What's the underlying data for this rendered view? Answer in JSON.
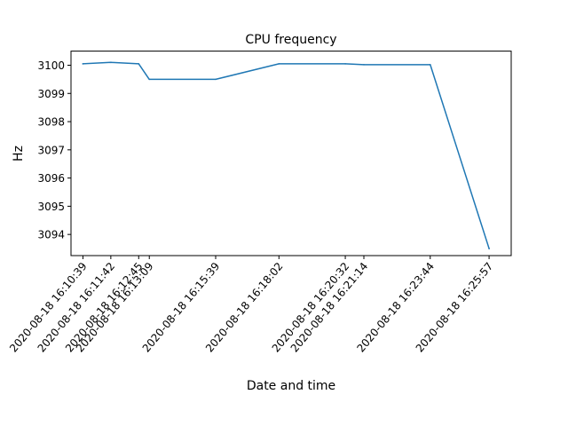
{
  "chart_data": {
    "type": "line",
    "title": "CPU frequency",
    "xlabel": "Date and time",
    "ylabel": "Hz",
    "x": [
      "2020-08-18 16:10:39",
      "2020-08-18 16:11:42",
      "2020-08-18 16:12:45",
      "2020-08-18 16:13:09",
      "2020-08-18 16:15:39",
      "2020-08-18 16:18:02",
      "2020-08-18 16:20:32",
      "2020-08-18 16:21:14",
      "2020-08-18 16:23:44",
      "2020-08-18 16:25:57"
    ],
    "series": [
      {
        "values": [
          3100.05,
          3100.1,
          3100.05,
          3099.5,
          3099.5,
          3100.05,
          3100.05,
          3100.02,
          3100.02,
          3093.5
        ],
        "color": "#1f77b4"
      }
    ],
    "yticks": [
      3094,
      3095,
      3096,
      3097,
      3098,
      3099,
      3100
    ],
    "ylim": [
      3093.25,
      3100.5
    ],
    "xlim": [
      "2020-08-18 16:10:12",
      "2020-08-18 16:26:47"
    ],
    "grid": false
  }
}
